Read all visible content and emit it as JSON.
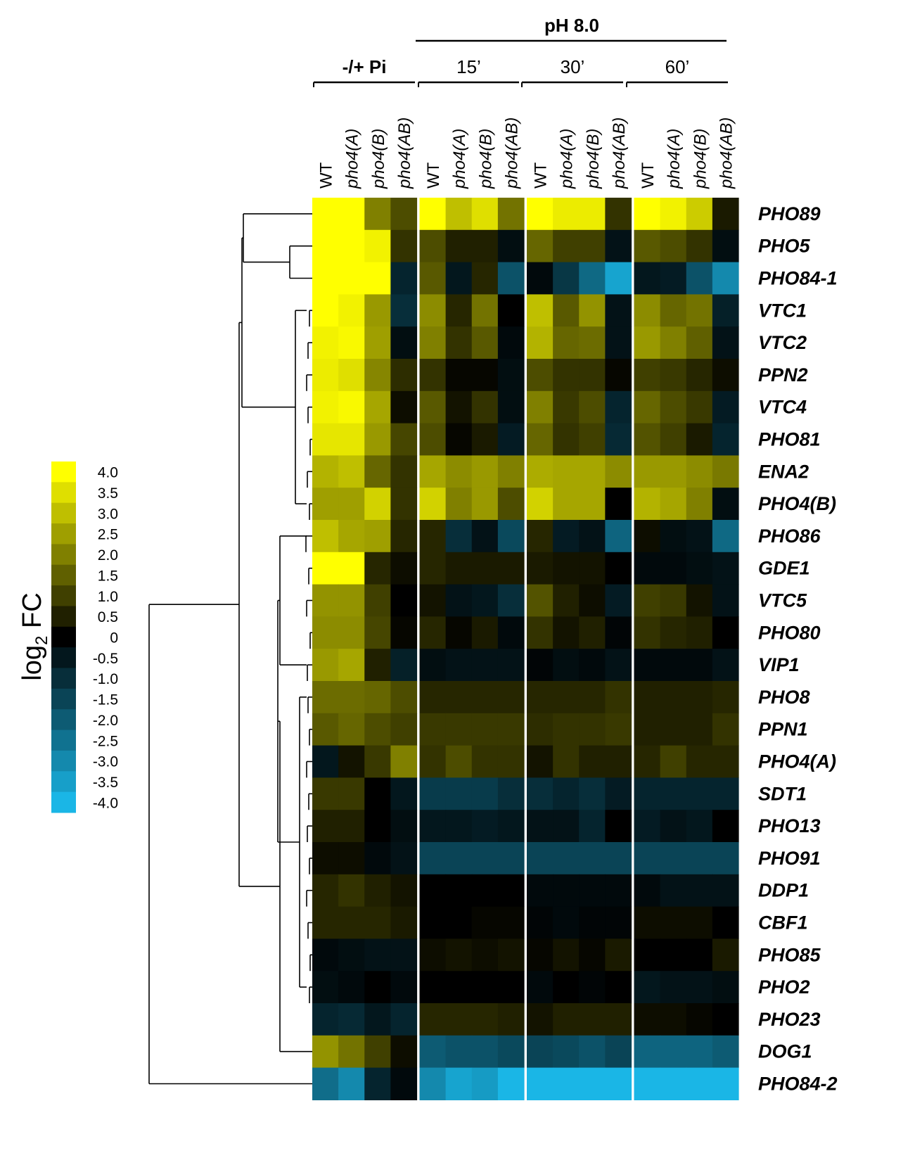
{
  "chart_data": {
    "type": "heatmap",
    "top_header": "pH 8.0",
    "column_groups": [
      {
        "label": "-/+ Pi",
        "bold": true
      },
      {
        "label": "15’",
        "bold": false
      },
      {
        "label": "30’",
        "bold": false
      },
      {
        "label": "60’",
        "bold": false
      }
    ],
    "columns": [
      {
        "label": "WT",
        "italic": false
      },
      {
        "label": "pho4(A)",
        "italic": true
      },
      {
        "label": "pho4(B)",
        "italic": true
      },
      {
        "label": "pho4(AB)",
        "italic": true
      },
      {
        "label": "WT",
        "italic": false
      },
      {
        "label": "pho4(A)",
        "italic": true
      },
      {
        "label": "pho4(B)",
        "italic": true
      },
      {
        "label": "pho4(AB)",
        "italic": true
      },
      {
        "label": "WT",
        "italic": false
      },
      {
        "label": "pho4(A)",
        "italic": true
      },
      {
        "label": "pho4(B)",
        "italic": true
      },
      {
        "label": "pho4(AB)",
        "italic": true
      },
      {
        "label": "WT",
        "italic": false
      },
      {
        "label": "pho4(A)",
        "italic": true
      },
      {
        "label": "pho4(B)",
        "italic": true
      },
      {
        "label": "pho4(AB)",
        "italic": true
      }
    ],
    "rows": [
      "PHO89",
      "PHO5",
      "PHO84-1",
      "VTC1",
      "VTC2",
      "PPN2",
      "VTC4",
      "PHO81",
      "ENA2",
      "PHO4(B)",
      "PHO86",
      "GDE1",
      "VTC5",
      "PHO80",
      "VIP1",
      "PHO8",
      "PPN1",
      "PHO4(A)",
      "SDT1",
      "PHO13",
      "PHO91",
      "DDP1",
      "CBF1",
      "PHO85",
      "PHO2",
      "PHO23",
      "DOG1",
      "PHO84-2"
    ],
    "values": [
      [
        4.0,
        4.0,
        2.0,
        1.2,
        4.0,
        3.0,
        3.5,
        1.8,
        4.0,
        3.7,
        3.7,
        0.8,
        4.0,
        3.8,
        3.2,
        0.4
      ],
      [
        4.0,
        4.0,
        3.8,
        0.8,
        1.2,
        0.5,
        0.5,
        -0.3,
        1.6,
        1.0,
        1.0,
        -0.4,
        1.4,
        1.2,
        0.8,
        -0.3
      ],
      [
        4.0,
        4.0,
        4.0,
        -0.8,
        1.4,
        -0.5,
        0.6,
        -1.8,
        -0.2,
        -1.2,
        -2.3,
        -3.6,
        -0.5,
        -0.6,
        -1.8,
        -3.0
      ],
      [
        4.0,
        3.8,
        2.4,
        -1.0,
        2.2,
        0.6,
        1.8,
        0.0,
        3.0,
        1.4,
        2.3,
        -0.4,
        2.2,
        1.6,
        1.8,
        -0.7
      ],
      [
        3.8,
        3.9,
        2.5,
        -0.3,
        2.0,
        0.8,
        1.4,
        -0.2,
        2.8,
        1.6,
        1.7,
        -0.4,
        2.4,
        2.0,
        1.5,
        -0.4
      ],
      [
        3.7,
        3.5,
        2.1,
        0.7,
        0.8,
        0.1,
        0.1,
        -0.3,
        1.2,
        0.8,
        0.8,
        0.1,
        1.0,
        0.9,
        0.6,
        0.2
      ],
      [
        3.8,
        3.9,
        2.6,
        0.2,
        1.4,
        0.3,
        0.8,
        -0.3,
        2.0,
        0.9,
        1.2,
        -0.8,
        1.6,
        1.2,
        0.9,
        -0.6
      ],
      [
        3.6,
        3.6,
        2.4,
        1.1,
        1.2,
        0.1,
        0.4,
        -0.6,
        1.6,
        0.8,
        1.0,
        -0.9,
        1.3,
        1.0,
        0.4,
        -0.8
      ],
      [
        2.8,
        3.0,
        1.6,
        0.8,
        2.6,
        2.2,
        2.4,
        2.0,
        2.7,
        2.6,
        2.6,
        2.2,
        2.4,
        2.4,
        2.2,
        1.9
      ],
      [
        2.5,
        2.5,
        3.3,
        0.8,
        3.3,
        2.0,
        2.4,
        1.2,
        3.3,
        2.6,
        2.6,
        0.0,
        2.8,
        2.6,
        2.0,
        -0.3
      ],
      [
        3.0,
        2.6,
        2.5,
        0.6,
        0.6,
        -1.0,
        -0.4,
        -1.6,
        0.6,
        -0.6,
        -0.4,
        -2.2,
        0.2,
        -0.3,
        -0.4,
        -2.3
      ],
      [
        4.0,
        4.0,
        0.6,
        0.2,
        0.6,
        0.4,
        0.4,
        0.4,
        0.4,
        0.3,
        0.3,
        0.0,
        -0.2,
        -0.2,
        -0.3,
        -0.4
      ],
      [
        2.3,
        2.3,
        1.0,
        0.0,
        0.3,
        -0.4,
        -0.5,
        -1.0,
        1.3,
        0.5,
        0.2,
        -0.6,
        1.0,
        0.9,
        0.3,
        -0.4
      ],
      [
        2.2,
        2.2,
        1.1,
        0.1,
        0.6,
        0.1,
        0.4,
        -0.2,
        0.8,
        0.3,
        0.5,
        -0.1,
        0.8,
        0.6,
        0.5,
        0.0
      ],
      [
        2.4,
        2.6,
        0.5,
        -0.7,
        -0.3,
        -0.4,
        -0.4,
        -0.4,
        -0.1,
        -0.3,
        -0.2,
        -0.4,
        -0.2,
        -0.2,
        -0.2,
        -0.4
      ],
      [
        1.7,
        1.7,
        1.6,
        1.2,
        0.6,
        0.6,
        0.6,
        0.6,
        0.6,
        0.6,
        0.6,
        0.8,
        0.5,
        0.5,
        0.5,
        0.6
      ],
      [
        1.4,
        1.6,
        1.2,
        1.0,
        0.9,
        0.9,
        0.9,
        0.9,
        0.7,
        0.8,
        0.8,
        0.9,
        0.5,
        0.5,
        0.5,
        0.8
      ],
      [
        -0.5,
        0.3,
        0.9,
        2.0,
        0.8,
        1.2,
        0.8,
        0.8,
        0.3,
        0.8,
        0.5,
        0.5,
        0.6,
        1.0,
        0.6,
        0.6
      ],
      [
        0.9,
        0.9,
        0.0,
        -0.5,
        -1.3,
        -1.3,
        -1.3,
        -1.0,
        -1.0,
        -0.8,
        -1.0,
        -0.6,
        -0.8,
        -0.8,
        -0.8,
        -0.8
      ],
      [
        0.5,
        0.5,
        0.0,
        -0.3,
        -0.5,
        -0.5,
        -0.6,
        -0.5,
        -0.4,
        -0.4,
        -0.8,
        0.0,
        -0.6,
        -0.4,
        -0.5,
        0.0
      ],
      [
        0.2,
        0.2,
        -0.2,
        -0.4,
        -1.5,
        -1.5,
        -1.5,
        -1.5,
        -1.5,
        -1.5,
        -1.5,
        -1.5,
        -1.5,
        -1.5,
        -1.5,
        -1.5
      ],
      [
        0.6,
        0.8,
        0.5,
        0.3,
        0.0,
        0.0,
        0.0,
        0.0,
        -0.2,
        -0.2,
        -0.2,
        -0.2,
        -0.2,
        -0.4,
        -0.4,
        -0.4
      ],
      [
        0.6,
        0.6,
        0.6,
        0.4,
        0.0,
        0.0,
        0.1,
        0.1,
        -0.1,
        -0.2,
        -0.1,
        -0.1,
        0.2,
        0.2,
        0.2,
        0.0
      ],
      [
        -0.2,
        -0.3,
        -0.4,
        -0.4,
        0.2,
        0.3,
        0.2,
        0.3,
        0.1,
        0.3,
        0.1,
        0.4,
        0.0,
        0.0,
        0.0,
        0.4
      ],
      [
        -0.3,
        -0.2,
        0.0,
        -0.2,
        0.0,
        0.0,
        0.0,
        0.0,
        -0.2,
        0.0,
        -0.1,
        0.0,
        -0.5,
        -0.4,
        -0.4,
        -0.3
      ],
      [
        -0.8,
        -0.9,
        -0.5,
        -0.8,
        0.6,
        0.6,
        0.6,
        0.5,
        0.3,
        0.5,
        0.5,
        0.5,
        0.2,
        0.2,
        0.1,
        0.0
      ],
      [
        2.3,
        1.8,
        1.0,
        0.2,
        -2.0,
        -1.8,
        -1.8,
        -1.6,
        -1.5,
        -1.6,
        -1.8,
        -1.5,
        -2.2,
        -2.2,
        -2.2,
        -2.0
      ],
      [
        -2.4,
        -3.0,
        -0.8,
        -0.2,
        -3.0,
        -3.6,
        -3.4,
        -4.0,
        -4.0,
        -4.0,
        -4.0,
        -4.0,
        -4.0,
        -4.0,
        -4.0,
        -4.0
      ]
    ],
    "color_scale": {
      "min": -4.0,
      "max": 4.0,
      "low_color": "#1ab6e6",
      "mid_color": "#000000",
      "high_color": "#ffff00",
      "tick_labels": [
        "4.0",
        "3.5",
        "3.0",
        "2.5",
        "2.0",
        "1.5",
        "1.0",
        "0.5",
        "0",
        "-0.5",
        "-1.0",
        "-1.5",
        "-2.0",
        "-2.5",
        "-3.0",
        "-3.5",
        "-4.0"
      ]
    },
    "legend": {
      "title_main": "log",
      "title_sub": "2",
      "title_suffix": " FC"
    },
    "dendrogram": "row clustering tree on left"
  }
}
